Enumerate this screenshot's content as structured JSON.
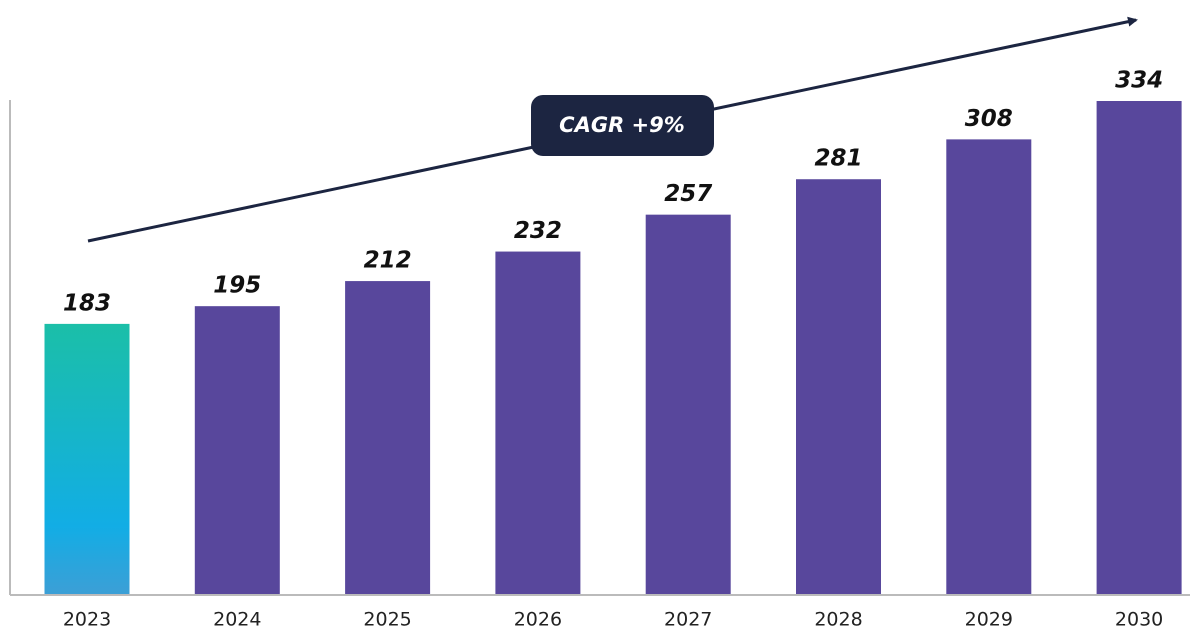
{
  "chart_data": {
    "type": "bar",
    "categories": [
      "2023",
      "2024",
      "2025",
      "2026",
      "2027",
      "2028",
      "2029",
      "2030"
    ],
    "values": [
      183,
      195,
      212,
      232,
      257,
      281,
      308,
      334
    ],
    "colors": [
      "#1bbfa8",
      "#58479c",
      "#58479c",
      "#58479c",
      "#58479c",
      "#58479c",
      "#58479c",
      "#58479c"
    ],
    "annotation": "CAGR +9%"
  }
}
